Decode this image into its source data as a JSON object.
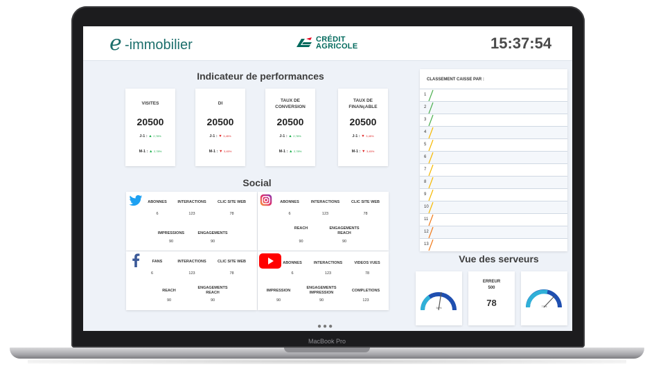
{
  "device": {
    "label": "MacBook Pro"
  },
  "header": {
    "logo_e": "e",
    "logo_text": "-immobilier",
    "bank_line1": "CRÉDIT",
    "bank_line2": "AGRICOLE",
    "clock": "15:37:54"
  },
  "performance": {
    "title": "Indicateur de performances",
    "cards": [
      {
        "label1": "VISITES",
        "label2": "",
        "value": "20500",
        "j1_label": "J-1 :",
        "j1_pct": "2,78%",
        "j1_trend": "up",
        "m1_label": "M-1 :",
        "m1_pct": "2,78%",
        "m1_trend": "up"
      },
      {
        "label1": "DI",
        "label2": "",
        "value": "20500",
        "j1_label": "J-1 :",
        "j1_pct": "3,45%",
        "j1_trend": "down",
        "m1_label": "M-1 :",
        "m1_pct": "3,45%",
        "m1_trend": "down"
      },
      {
        "label1": "TAUX DE",
        "label2": "CONVERSION",
        "value": "20500",
        "j1_label": "J-1 :",
        "j1_pct": "2,78%",
        "j1_trend": "up",
        "m1_label": "M-1 :",
        "m1_pct": "2,78%",
        "m1_trend": "up"
      },
      {
        "label1": "TAUX DE",
        "label2": "FINANçABLE",
        "value": "20500",
        "j1_label": "J-1 :",
        "j1_pct": "3,45%",
        "j1_trend": "down",
        "m1_label": "M-1 :",
        "m1_pct": "3,45%",
        "m1_trend": "down"
      }
    ]
  },
  "social": {
    "title": "Social",
    "twitter": {
      "abonnes_label": "ABONNES",
      "abonnes": "6",
      "interactions_label": "INTERACTIONS",
      "interactions": "123",
      "clic_label": "CLIC SITE WEB",
      "clic": "78",
      "impressions_label": "IMPRESSIONS",
      "impressions": "90",
      "engagements_label": "ENGAGEMENTS",
      "engagements": "90"
    },
    "instagram": {
      "abonnes_label": "ABONNES",
      "abonnes": "6",
      "interactions_label": "INTERACTIONS",
      "interactions": "123",
      "clic_label": "CLIC SITE WEB",
      "clic": "78",
      "reach_label": "REACH",
      "reach": "90",
      "eng_label1": "ENGAGEMENTS",
      "eng_label2": "REACH",
      "eng": "90"
    },
    "facebook": {
      "fans_label": "FANS",
      "fans": "6",
      "interactions_label": "INTERACTIONS",
      "interactions": "123",
      "clic_label": "CLIC SITE WEB",
      "clic": "78",
      "reach_label": "REACH",
      "reach": "90",
      "eng_label1": "ENGAGEMENTS",
      "eng_label2": "REACH",
      "eng": "90"
    },
    "youtube": {
      "abonnes_label": "ABONNES",
      "abonnes": "6",
      "interactions_label": "INTERACTIONS",
      "interactions": "123",
      "videos_label": "VIDEOS VUES",
      "videos": "78",
      "impression_label": "IMPRESSION",
      "impression": "90",
      "eng_label1": "ENGAGEMENTS",
      "eng_label2": "IMPRESSION",
      "eng": "90",
      "completions_label": "COMPLETIONS",
      "completions": "123"
    }
  },
  "ranking": {
    "title": "CLASSEMENT CAISSE PAR :",
    "rows": [
      {
        "num": "1",
        "color": "#4caf50"
      },
      {
        "num": "2",
        "color": "#4caf50"
      },
      {
        "num": "3",
        "color": "#4caf50"
      },
      {
        "num": "4",
        "color": "#f5b800"
      },
      {
        "num": "5",
        "color": "#f5b800"
      },
      {
        "num": "6",
        "color": "#f5b800"
      },
      {
        "num": "7",
        "color": "#f5b800"
      },
      {
        "num": "8",
        "color": "#f5b800"
      },
      {
        "num": "9",
        "color": "#f5b800"
      },
      {
        "num": "10",
        "color": "#f5b800"
      },
      {
        "num": "11",
        "color": "#f07a1a"
      },
      {
        "num": "12",
        "color": "#f07a1a"
      },
      {
        "num": "13",
        "color": "#f07a1a"
      }
    ]
  },
  "servers": {
    "title": "Vue des serveurs",
    "gauge1_label": "58%",
    "gauge2_label": "73%",
    "error_label1": "ERREUR",
    "error_label2": "500",
    "error_value": "78"
  },
  "pager": {
    "dots": "●●●"
  }
}
